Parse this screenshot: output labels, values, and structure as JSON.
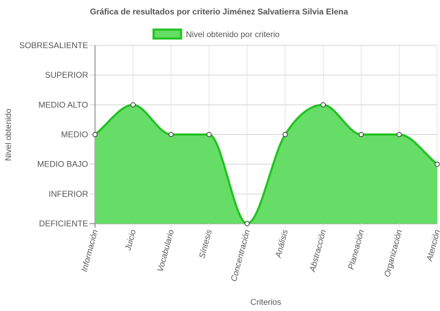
{
  "chart_data": {
    "type": "area",
    "title": "Gráfica de resultados por criterio Jiménez Salvatierra Silvia Elena",
    "xlabel": "Criterios",
    "ylabel": "Nivel obtenido",
    "y_levels": [
      "DEFICIENTE",
      "INFERIOR",
      "MEDIO BAJO",
      "MEDIO",
      "MEDIO ALTO",
      "SUPERIOR",
      "SOBRESALIENTE"
    ],
    "ylim": [
      0,
      6
    ],
    "categories": [
      "Información",
      "Juicio",
      "Vocabulario",
      "Síntesis",
      "Concentración",
      "Análisis",
      "Abstracción",
      "Planeación",
      "Organización",
      "Atención"
    ],
    "series": [
      {
        "name": "Nivel obtenido por criterio",
        "values": [
          3,
          4,
          3,
          3,
          0,
          3,
          4,
          3,
          3,
          2
        ],
        "color": "#1fc21f",
        "fill": "#66dd66"
      }
    ],
    "grid": true,
    "legend": "top-center"
  }
}
